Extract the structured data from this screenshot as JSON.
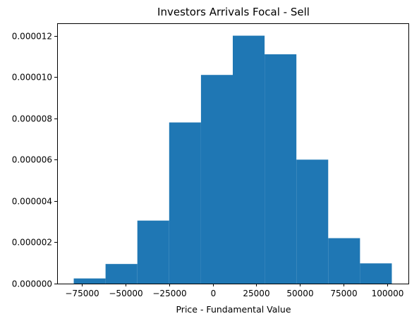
{
  "chart_data": {
    "type": "bar",
    "title": "Investors Arrivals Focal - Sell",
    "xlabel": "Price - Fundamental Value",
    "ylabel": "",
    "bar_color": "#1f77b4",
    "xlim": [
      -89000,
      112000
    ],
    "ylim": [
      0,
      1.26e-05
    ],
    "grid": false,
    "bins": [
      {
        "x0": -79500,
        "x1": -61300,
        "value": 2.5e-07
      },
      {
        "x0": -61300,
        "x1": -43100,
        "value": 9.5e-07
      },
      {
        "x0": -43100,
        "x1": -24900,
        "value": 3.05e-06
      },
      {
        "x0": -24900,
        "x1": -6700,
        "value": 7.8e-06
      },
      {
        "x0": -6700,
        "x1": 11500,
        "value": 1.01e-05
      },
      {
        "x0": 11500,
        "x1": 29700,
        "value": 1.2e-05
      },
      {
        "x0": 29700,
        "x1": 47900,
        "value": 1.11e-05
      },
      {
        "x0": 47900,
        "x1": 66100,
        "value": 6e-06
      },
      {
        "x0": 66100,
        "x1": 84300,
        "value": 2.2e-06
      },
      {
        "x0": 84300,
        "x1": 102500,
        "value": 9.8e-07
      }
    ],
    "x_ticks": [
      {
        "value": -75000,
        "label": "−75000"
      },
      {
        "value": -50000,
        "label": "−50000"
      },
      {
        "value": -25000,
        "label": "−25000"
      },
      {
        "value": 0,
        "label": "0"
      },
      {
        "value": 25000,
        "label": "25000"
      },
      {
        "value": 50000,
        "label": "50000"
      },
      {
        "value": 75000,
        "label": "75000"
      },
      {
        "value": 100000,
        "label": "100000"
      }
    ],
    "y_ticks": [
      {
        "value": 0,
        "label": "0.000000"
      },
      {
        "value": 2e-06,
        "label": "0.000002"
      },
      {
        "value": 4e-06,
        "label": "0.000004"
      },
      {
        "value": 6e-06,
        "label": "0.000006"
      },
      {
        "value": 8e-06,
        "label": "0.000008"
      },
      {
        "value": 1e-05,
        "label": "0.000010"
      },
      {
        "value": 1.2e-05,
        "label": "0.000012"
      }
    ]
  }
}
